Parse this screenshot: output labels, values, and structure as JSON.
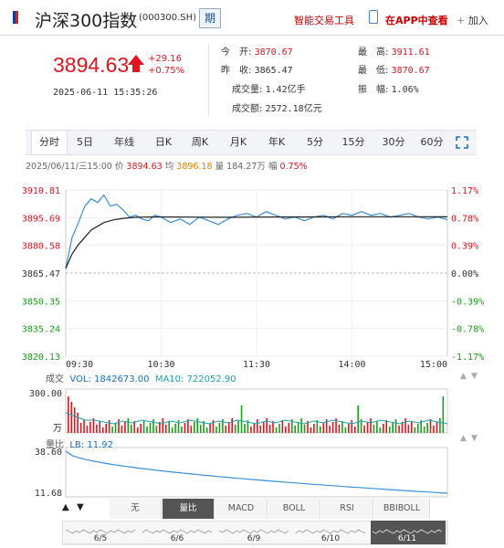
{
  "header": {
    "title": "沪深300指数",
    "code": "(000300.SH)",
    "period_btn": "期",
    "tools_link": "智能交易工具",
    "app_link": "在APP中查看",
    "add_label": "加入"
  },
  "quote": {
    "price": "3894.63",
    "change": "+29.16",
    "change_pct": "+0.75%",
    "timestamp": "2025-06-11 15:35:26"
  },
  "stats": {
    "open_label": "今　开:",
    "open": "3870.67",
    "prev_label": "昨　收:",
    "prev": "3865.47",
    "vol_label": "成交量:",
    "vol": "1.42亿手",
    "amt_label": "成交额:",
    "amt": "2572.18亿元",
    "high_label": "最　高:",
    "high": "3911.61",
    "low_label": "最　低:",
    "low": "3870.67",
    "amp_label": "振　幅:",
    "amp": "1.06%"
  },
  "tabs": [
    "分时",
    "5日",
    "年线",
    "日K",
    "周K",
    "月K",
    "年K",
    "5分",
    "15分",
    "30分",
    "60分"
  ],
  "active_tab": "分时",
  "info_line": {
    "date": "2025/06/11/三15:00",
    "price_label": "价",
    "price": "3894.63",
    "avg_label": "均",
    "avg": "3896.18",
    "vol_label": "量",
    "vol": "184.27万",
    "amp_label": "幅",
    "amp": "0.75%"
  },
  "chart_data": {
    "type": "line",
    "title": "",
    "y_ticks_left": [
      "3910.81",
      "3895.69",
      "3880.58",
      "3865.47",
      "3850.35",
      "3835.24",
      "3820.13"
    ],
    "y_ticks_right": [
      "1.17%",
      "0.78%",
      "0.39%",
      "0.00%",
      "-0.39%",
      "-0.78%",
      "-1.17%"
    ],
    "x_ticks": [
      "09:30",
      "10:30",
      "11:30",
      "14:00",
      "15:00"
    ],
    "ylim": [
      3820.13,
      3910.81
    ],
    "prev_close": 3865.47,
    "series": [
      {
        "color": "#3a8fd8",
        "x": [
          0,
          4,
          8,
          12,
          16,
          20,
          24,
          28,
          32,
          36,
          40,
          44,
          48,
          52,
          56,
          60,
          66,
          72,
          78,
          84,
          90,
          96,
          102,
          108,
          114,
          120,
          126,
          132,
          138,
          144,
          150,
          156,
          162,
          168,
          174,
          180,
          186,
          192,
          198,
          204,
          210,
          216,
          222,
          228,
          234,
          240
        ],
        "values": [
          3868,
          3885,
          3893,
          3902,
          3906,
          3904,
          3908,
          3902,
          3903,
          3900,
          3896,
          3897,
          3895,
          3894,
          3897,
          3896,
          3893,
          3895,
          3892,
          3896,
          3894,
          3892,
          3895,
          3897,
          3898,
          3896,
          3899,
          3897,
          3895,
          3896,
          3894,
          3896,
          3897,
          3895,
          3898,
          3897,
          3899,
          3897,
          3898,
          3896,
          3897,
          3898,
          3896,
          3895,
          3896,
          3894.63
        ]
      },
      {
        "color": "#222222",
        "x": [
          0,
          4,
          8,
          12,
          16,
          20,
          24,
          30,
          36,
          42,
          48,
          60,
          80,
          100,
          120,
          140,
          160,
          180,
          200,
          220,
          240
        ],
        "values": [
          3868,
          3876,
          3881,
          3885,
          3889,
          3891,
          3893,
          3894.5,
          3895.3,
          3895.8,
          3896,
          3896.1,
          3896,
          3895.9,
          3896,
          3896.1,
          3896.1,
          3896.2,
          3896.2,
          3896.2,
          3896.18
        ]
      }
    ],
    "volume": {
      "label": "成交",
      "vol_text": "VOL: 1842673.00",
      "ma_text": "MA10: 722052.90",
      "ymax_label": "300.00",
      "unit": "万"
    },
    "lb": {
      "label": "量比",
      "lb_text": "LB: 11.92",
      "ymax_label": "38.60",
      "ymin_label": "11.68"
    }
  },
  "bottom_tabs": [
    "无",
    "量比",
    "MACD",
    "BOLL",
    "RSI",
    "BBIBOLL"
  ],
  "bottom_active": "量比",
  "navigator": [
    "6/5",
    "6/6",
    "6/9",
    "6/10",
    "6/11"
  ],
  "colors": {
    "up": "#e0141e",
    "down": "#1a9e1a",
    "line": "#3a8fd8",
    "avg": "#222222"
  }
}
